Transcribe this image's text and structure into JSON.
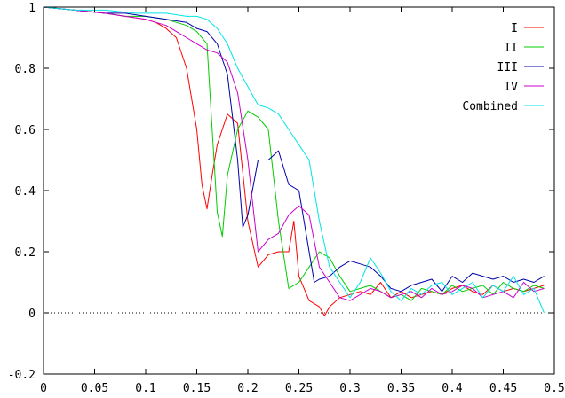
{
  "chart_data": {
    "type": "line",
    "title": "",
    "xlabel": "",
    "ylabel": "",
    "xlim": [
      0,
      0.5
    ],
    "ylim": [
      -0.2,
      1
    ],
    "xticks": [
      "0",
      "0.05",
      "0.1",
      "0.15",
      "0.2",
      "0.25",
      "0.3",
      "0.35",
      "0.4",
      "0.45",
      "0.5"
    ],
    "xtick_values": [
      0,
      0.05,
      0.1,
      0.15,
      0.2,
      0.25,
      0.3,
      0.35,
      0.4,
      0.45,
      0.5
    ],
    "yticks": [
      "-0.2",
      "0",
      "0.2",
      "0.4",
      "0.6",
      "0.8",
      "1"
    ],
    "ytick_values": [
      -0.2,
      0,
      0.2,
      0.4,
      0.6,
      0.8,
      1
    ],
    "zero_line": true,
    "grid": false,
    "legend_position": "top-right",
    "series": [
      {
        "name": "I",
        "color": "#ff0000",
        "x": [
          0,
          0.03,
          0.06,
          0.08,
          0.1,
          0.11,
          0.12,
          0.13,
          0.14,
          0.15,
          0.155,
          0.16,
          0.165,
          0.17,
          0.18,
          0.19,
          0.2,
          0.21,
          0.22,
          0.23,
          0.24,
          0.245,
          0.25,
          0.26,
          0.27,
          0.275,
          0.28,
          0.29,
          0.3,
          0.31,
          0.32,
          0.33,
          0.34,
          0.35,
          0.36,
          0.37,
          0.38,
          0.39,
          0.4,
          0.41,
          0.42,
          0.43,
          0.44,
          0.45,
          0.46,
          0.47,
          0.48,
          0.49
        ],
        "y": [
          1,
          0.99,
          0.98,
          0.97,
          0.96,
          0.95,
          0.93,
          0.9,
          0.8,
          0.6,
          0.42,
          0.34,
          0.45,
          0.55,
          0.65,
          0.62,
          0.3,
          0.15,
          0.19,
          0.2,
          0.2,
          0.3,
          0.12,
          0.04,
          0.02,
          -0.01,
          0.02,
          0.05,
          0.06,
          0.07,
          0.06,
          0.1,
          0.05,
          0.07,
          0.05,
          0.06,
          0.07,
          0.06,
          0.08,
          0.09,
          0.07,
          0.06,
          0.09,
          0.07,
          0.08,
          0.07,
          0.08,
          0.09
        ]
      },
      {
        "name": "II",
        "color": "#00cc00",
        "x": [
          0,
          0.03,
          0.06,
          0.08,
          0.1,
          0.12,
          0.14,
          0.15,
          0.16,
          0.165,
          0.17,
          0.175,
          0.18,
          0.19,
          0.2,
          0.21,
          0.22,
          0.23,
          0.24,
          0.25,
          0.26,
          0.27,
          0.28,
          0.29,
          0.3,
          0.31,
          0.32,
          0.33,
          0.34,
          0.35,
          0.36,
          0.37,
          0.38,
          0.39,
          0.4,
          0.41,
          0.42,
          0.43,
          0.44,
          0.45,
          0.46,
          0.47,
          0.48,
          0.49
        ],
        "y": [
          1,
          0.99,
          0.98,
          0.97,
          0.97,
          0.96,
          0.94,
          0.92,
          0.88,
          0.6,
          0.33,
          0.25,
          0.45,
          0.6,
          0.66,
          0.64,
          0.6,
          0.3,
          0.08,
          0.1,
          0.15,
          0.2,
          0.18,
          0.12,
          0.07,
          0.08,
          0.09,
          0.07,
          0.05,
          0.06,
          0.04,
          0.08,
          0.07,
          0.06,
          0.09,
          0.07,
          0.08,
          0.09,
          0.06,
          0.1,
          0.08,
          0.07,
          0.09,
          0.08
        ]
      },
      {
        "name": "III",
        "color": "#0000aa",
        "x": [
          0,
          0.03,
          0.06,
          0.08,
          0.1,
          0.12,
          0.14,
          0.15,
          0.16,
          0.17,
          0.18,
          0.19,
          0.195,
          0.2,
          0.21,
          0.22,
          0.23,
          0.24,
          0.25,
          0.26,
          0.265,
          0.27,
          0.28,
          0.29,
          0.3,
          0.31,
          0.32,
          0.33,
          0.34,
          0.35,
          0.36,
          0.37,
          0.38,
          0.39,
          0.4,
          0.41,
          0.42,
          0.43,
          0.44,
          0.45,
          0.46,
          0.47,
          0.48,
          0.49
        ],
        "y": [
          1,
          0.99,
          0.98,
          0.98,
          0.97,
          0.96,
          0.95,
          0.93,
          0.92,
          0.88,
          0.78,
          0.5,
          0.28,
          0.32,
          0.5,
          0.5,
          0.53,
          0.42,
          0.4,
          0.2,
          0.1,
          0.11,
          0.12,
          0.15,
          0.17,
          0.16,
          0.15,
          0.12,
          0.08,
          0.07,
          0.09,
          0.1,
          0.11,
          0.07,
          0.12,
          0.1,
          0.13,
          0.12,
          0.11,
          0.12,
          0.1,
          0.11,
          0.1,
          0.12
        ]
      },
      {
        "name": "IV",
        "color": "#cc00cc",
        "x": [
          0,
          0.03,
          0.06,
          0.08,
          0.1,
          0.12,
          0.13,
          0.14,
          0.15,
          0.16,
          0.17,
          0.18,
          0.19,
          0.2,
          0.21,
          0.22,
          0.23,
          0.24,
          0.25,
          0.26,
          0.27,
          0.28,
          0.29,
          0.3,
          0.31,
          0.32,
          0.33,
          0.34,
          0.35,
          0.36,
          0.37,
          0.38,
          0.39,
          0.4,
          0.41,
          0.42,
          0.43,
          0.44,
          0.45,
          0.46,
          0.47,
          0.48,
          0.49
        ],
        "y": [
          1,
          0.99,
          0.98,
          0.97,
          0.96,
          0.94,
          0.92,
          0.9,
          0.88,
          0.86,
          0.85,
          0.82,
          0.72,
          0.5,
          0.2,
          0.24,
          0.26,
          0.32,
          0.35,
          0.32,
          0.15,
          0.1,
          0.05,
          0.04,
          0.06,
          0.08,
          0.07,
          0.05,
          0.06,
          0.07,
          0.05,
          0.08,
          0.06,
          0.07,
          0.09,
          0.08,
          0.05,
          0.06,
          0.07,
          0.05,
          0.1,
          0.07,
          0.08
        ]
      },
      {
        "name": "Combined",
        "color": "#00e5e5",
        "x": [
          0,
          0.03,
          0.06,
          0.09,
          0.12,
          0.14,
          0.15,
          0.16,
          0.17,
          0.18,
          0.19,
          0.2,
          0.21,
          0.22,
          0.23,
          0.24,
          0.25,
          0.26,
          0.27,
          0.28,
          0.29,
          0.3,
          0.31,
          0.32,
          0.33,
          0.34,
          0.35,
          0.36,
          0.37,
          0.38,
          0.39,
          0.4,
          0.41,
          0.42,
          0.43,
          0.44,
          0.45,
          0.46,
          0.47,
          0.48,
          0.49
        ],
        "y": [
          1,
          0.99,
          0.99,
          0.98,
          0.98,
          0.97,
          0.97,
          0.96,
          0.93,
          0.88,
          0.8,
          0.74,
          0.68,
          0.67,
          0.65,
          0.6,
          0.55,
          0.5,
          0.3,
          0.15,
          0.1,
          0.05,
          0.1,
          0.18,
          0.13,
          0.07,
          0.04,
          0.08,
          0.06,
          0.09,
          0.1,
          0.06,
          0.08,
          0.1,
          0.05,
          0.09,
          0.07,
          0.12,
          0.06,
          0.08,
          0.0
        ]
      }
    ]
  }
}
